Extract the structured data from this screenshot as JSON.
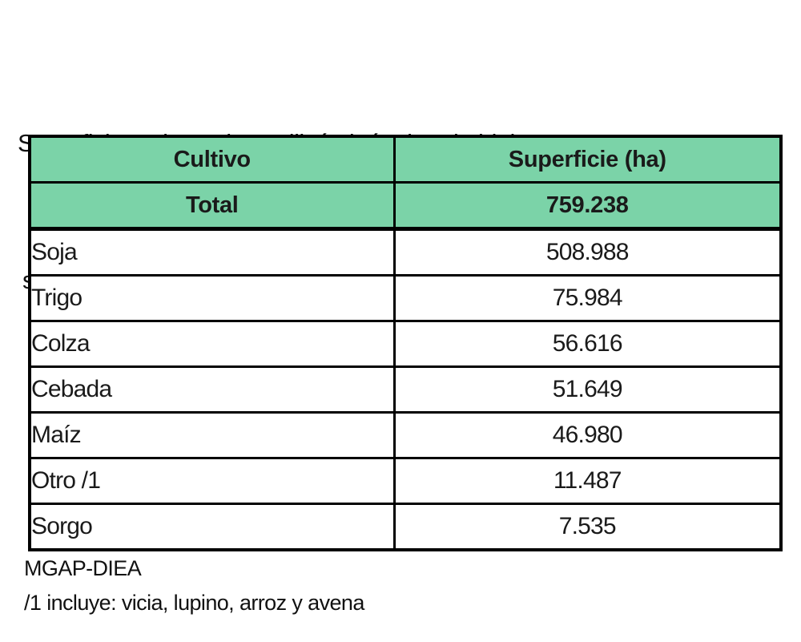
{
  "title": {
    "line1": "Superficie en la cual se utilizó algún tipo de bioinsumo",
    "line2": "según cultivo."
  },
  "table": {
    "header_bg_color": "#7bd3a8",
    "border_color": "#000000",
    "columns": {
      "cultivo": "Cultivo",
      "superficie": "Superficie (ha)"
    },
    "total_row": {
      "label": "Total",
      "value": "759.238"
    },
    "rows": [
      {
        "cultivo": "Soja",
        "superficie": "508.988"
      },
      {
        "cultivo": "Trigo",
        "superficie": "75.984"
      },
      {
        "cultivo": "Colza",
        "superficie": "56.616"
      },
      {
        "cultivo": "Cebada",
        "superficie": "51.649"
      },
      {
        "cultivo": "Maíz",
        "superficie": "46.980"
      },
      {
        "cultivo": "Otro /1",
        "superficie": "11.487"
      },
      {
        "cultivo": "Sorgo",
        "superficie": "7.535"
      }
    ]
  },
  "footer": {
    "source": "MGAP-DIEA",
    "note": "/1 incluye: vicia, lupino, arroz y avena"
  },
  "chart_data": {
    "type": "table",
    "title": "Superficie en la cual se utilizó algún tipo de bioinsumo según cultivo.",
    "columns": [
      "Cultivo",
      "Superficie (ha)"
    ],
    "categories": [
      "Total",
      "Soja",
      "Trigo",
      "Colza",
      "Cebada",
      "Maíz",
      "Otro /1",
      "Sorgo"
    ],
    "values": [
      759238,
      508988,
      75984,
      56616,
      51649,
      46980,
      11487,
      7535
    ],
    "source": "MGAP-DIEA",
    "footnote": "/1 incluye: vicia, lupino, arroz y avena"
  }
}
